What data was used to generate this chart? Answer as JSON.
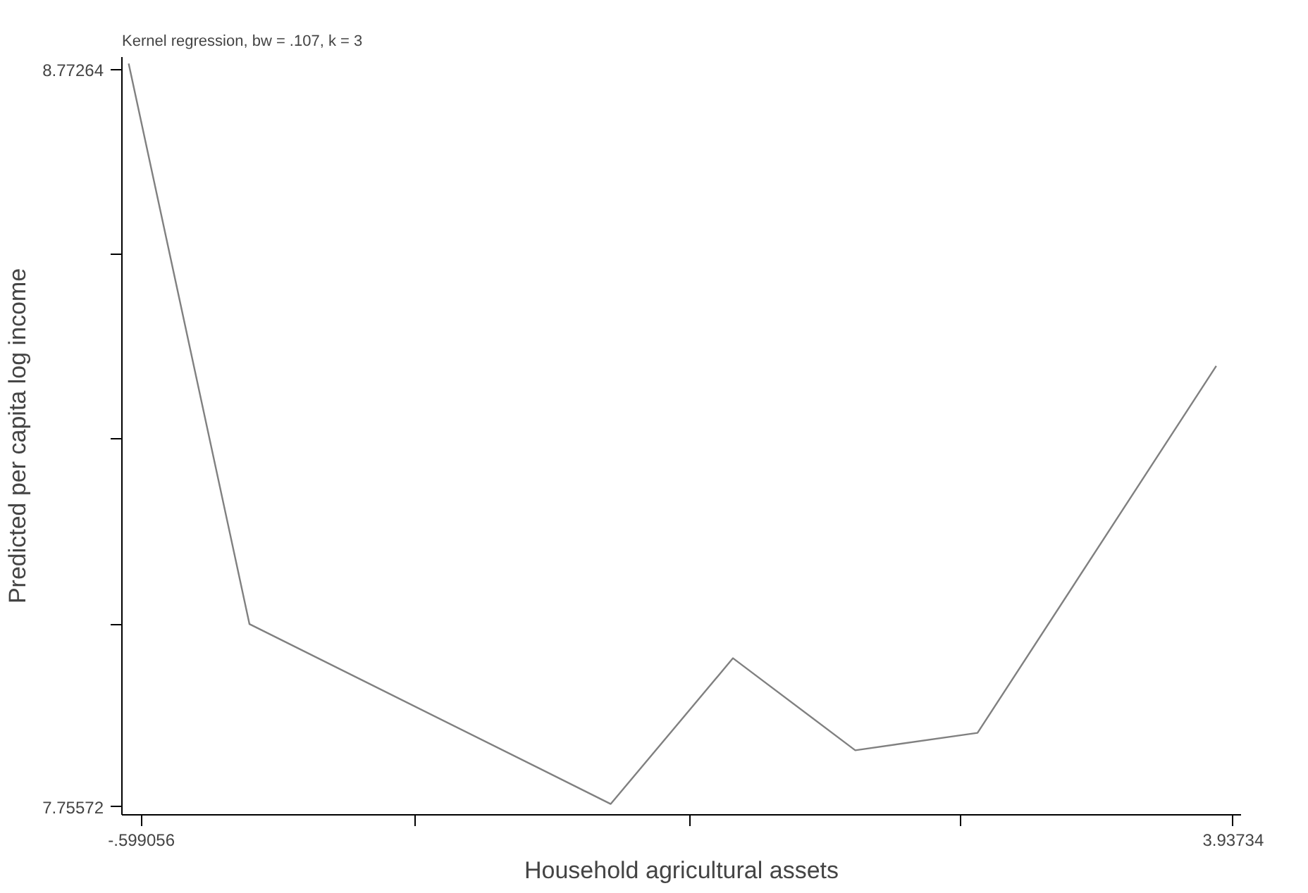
{
  "chart_data": {
    "type": "line",
    "title": "Kernel regression, bw = .107, k = 3",
    "xlabel": "Household agricultural assets",
    "ylabel": "Predicted per capita log income",
    "x": [
      -0.652,
      -0.15,
      1.351,
      1.859,
      2.367,
      2.875,
      3.867
    ],
    "series": [
      {
        "color": "#808080",
        "values": [
          8.781,
          8.008,
          7.76,
          7.961,
          7.834,
          7.858,
          8.364
        ]
      }
    ],
    "xlim": [
      -0.68,
      3.97
    ],
    "ylim": [
      7.745,
      8.79
    ],
    "xticks": [
      {
        "value": -0.599056,
        "label": "-.599056"
      },
      {
        "value": 0.539,
        "label": null
      },
      {
        "value": 1.678,
        "label": null
      },
      {
        "value": 2.805,
        "label": null
      },
      {
        "value": 3.93734,
        "label": "3.93734"
      }
    ],
    "yticks": [
      7.75572,
      {
        "value": 8.008,
        "label": null
      },
      {
        "value": 8.263,
        "label": null
      },
      {
        "value": 8.518,
        "label": null
      },
      8.77264
    ],
    "grid": false,
    "marker": "none",
    "line_style": "solid"
  }
}
